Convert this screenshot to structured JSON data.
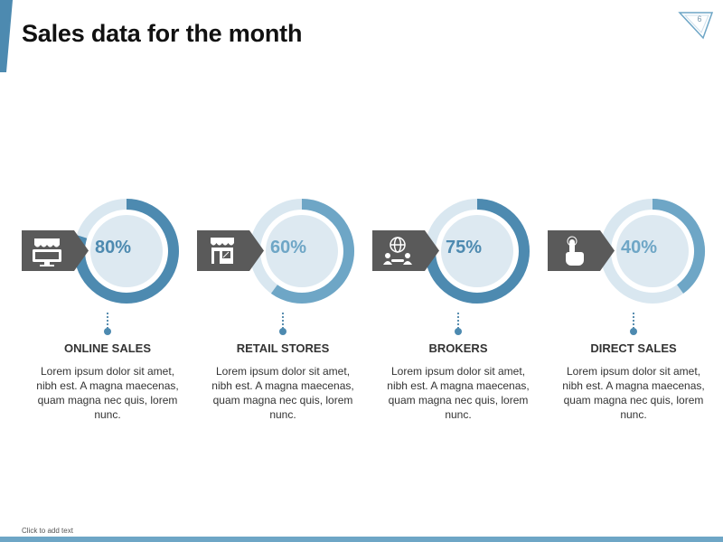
{
  "slide": {
    "title": "Sales data for the month",
    "number": "6",
    "footer": "Click to add text"
  },
  "colors": {
    "accent": "#4d8ab0",
    "accent_light": "#6ea6c6",
    "track": "#d9e7f0",
    "inner": "#dde9f1",
    "tag": "#5a5a5a",
    "text": "#333333"
  },
  "cards": [
    {
      "title": "ONLINE SALES",
      "value": "80%",
      "fraction": 0.8,
      "color": "#4d8ab0",
      "icon": "storefront-monitor-icon",
      "body": "Lorem ipsum dolor sit amet, nibh est. A magna maecenas, quam magna nec quis, lorem nunc."
    },
    {
      "title": "RETAIL STORES",
      "value": "60%",
      "fraction": 0.6,
      "color": "#6ea6c6",
      "icon": "shop-icon",
      "body": "Lorem ipsum dolor sit amet, nibh est. A magna maecenas, quam magna nec quis, lorem nunc."
    },
    {
      "title": "BROKERS",
      "value": "75%",
      "fraction": 0.75,
      "color": "#4d8ab0",
      "icon": "globe-handshake-icon",
      "body": "Lorem ipsum dolor sit amet, nibh est. A magna maecenas, quam magna nec quis, lorem nunc."
    },
    {
      "title": "DIRECT SALES",
      "value": "40%",
      "fraction": 0.4,
      "color": "#6ea6c6",
      "icon": "pointing-hand-icon",
      "body": "Lorem ipsum dolor sit amet, nibh est. A magna maecenas, quam magna nec quis, lorem nunc."
    }
  ]
}
